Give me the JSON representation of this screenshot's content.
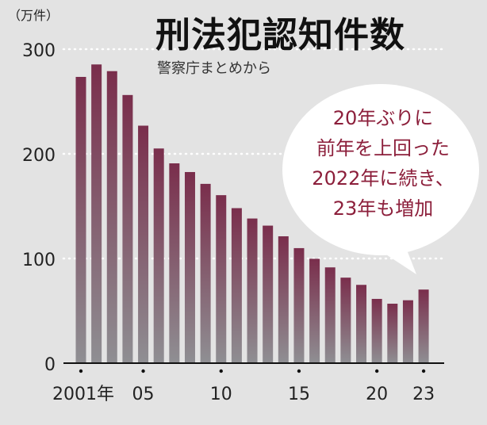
{
  "title": "刑法犯認知件数",
  "source": "警察庁まとめから",
  "unit": "（万件）",
  "callout": [
    "20年ぶりに",
    "前年を上回った",
    "2022年に続き、",
    "23年も増加"
  ],
  "colors": {
    "background": "#e3e3e3",
    "bar_top": "#7a2e4c",
    "bar_bottom": "#8f8f93",
    "gridline": "#ffffff",
    "callout_text": "#8c1f3b",
    "bubble": "#ffffff"
  },
  "chart_data": {
    "type": "bar",
    "title": "刑法犯認知件数",
    "ylabel": "（万件）",
    "ylim": [
      0,
      300
    ],
    "yticks": [
      "0",
      "100",
      "200",
      "300"
    ],
    "grid": true,
    "categories": [
      "2001",
      "2002",
      "2003",
      "2004",
      "2005",
      "2006",
      "2007",
      "2008",
      "2009",
      "2010",
      "2011",
      "2012",
      "2013",
      "2014",
      "2015",
      "2016",
      "2017",
      "2018",
      "2019",
      "2020",
      "2021",
      "2022",
      "2023"
    ],
    "values": [
      273.5,
      285.4,
      279.0,
      256.2,
      226.9,
      205.1,
      190.9,
      182.6,
      171.3,
      160.5,
      148.1,
      138.2,
      131.4,
      121.2,
      109.9,
      99.7,
      91.5,
      81.7,
      74.8,
      61.4,
      56.8,
      60.1,
      70.3
    ],
    "xtick_labels": [
      {
        "category": "2001",
        "label": "2001年"
      },
      {
        "category": "2005",
        "label": "05"
      },
      {
        "category": "2010",
        "label": "10"
      },
      {
        "category": "2015",
        "label": "15"
      },
      {
        "category": "2020",
        "label": "20"
      },
      {
        "category": "2023",
        "label": "23"
      }
    ]
  }
}
